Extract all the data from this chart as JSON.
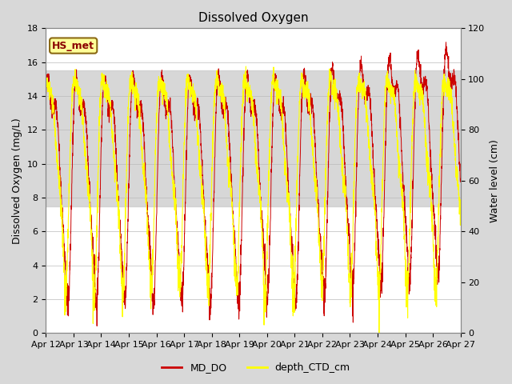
{
  "title": "Dissolved Oxygen",
  "ylabel_left": "Dissolved Oxygen (mg/L)",
  "ylabel_right": "Water level (cm)",
  "ylim_left": [
    0,
    18
  ],
  "ylim_right": [
    0,
    120
  ],
  "xlim": [
    0,
    15
  ],
  "x_tick_labels": [
    "Apr 12",
    "Apr 13",
    "Apr 14",
    "Apr 15",
    "Apr 16",
    "Apr 17",
    "Apr 18",
    "Apr 19",
    "Apr 20",
    "Apr 21",
    "Apr 22",
    "Apr 23",
    "Apr 24",
    "Apr 25",
    "Apr 26",
    "Apr 27"
  ],
  "shade_ymin": 7.5,
  "shade_ymax": 15.5,
  "shade_color": "#d0d0d0",
  "do_color": "#cc0000",
  "depth_color": "#ffff00",
  "legend_do": "MD_DO",
  "legend_depth": "depth_CTD_cm",
  "hs_label": "HS_met",
  "bg_color": "#d8d8d8",
  "plot_bg_color": "#ffffff",
  "title_fontsize": 11,
  "label_fontsize": 9,
  "tick_fontsize": 8
}
